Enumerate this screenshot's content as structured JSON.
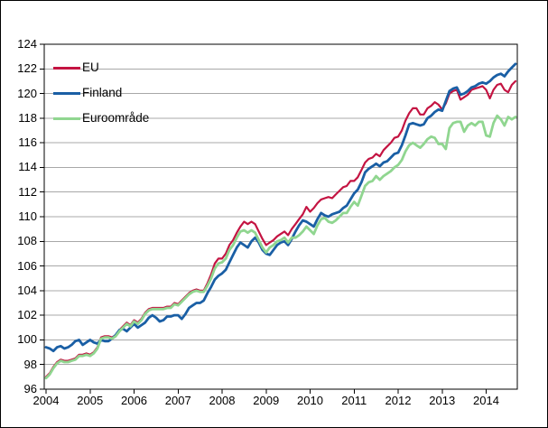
{
  "chart_data": {
    "type": "line",
    "title": "",
    "xlabel": "",
    "ylabel": "",
    "ylim": [
      96,
      124
    ],
    "ytick_step": 2,
    "yticks": [
      96,
      98,
      100,
      102,
      104,
      106,
      108,
      110,
      112,
      114,
      116,
      118,
      120,
      122,
      124
    ],
    "xtick_labels": [
      "2004",
      "2005",
      "2006",
      "2007",
      "2008",
      "2009",
      "2010",
      "2011",
      "2012",
      "2013",
      "2014"
    ],
    "x_start": "2004-01",
    "x_end": "2014-09",
    "x_frequency": "monthly",
    "grid": "horizontal",
    "legend_position": "top-left",
    "plot_border_color": "#000000",
    "gridline_color": "#a8a8a8",
    "series": [
      {
        "name": "EU",
        "color": "#c41442",
        "line_width": 2.2,
        "values": [
          97.0,
          97.3,
          97.8,
          98.2,
          98.4,
          98.3,
          98.3,
          98.4,
          98.5,
          98.8,
          98.8,
          98.9,
          98.8,
          99.0,
          99.4,
          100.2,
          100.3,
          100.3,
          100.2,
          100.4,
          100.8,
          101.1,
          101.4,
          101.2,
          101.6,
          101.4,
          101.7,
          102.2,
          102.5,
          102.6,
          102.6,
          102.6,
          102.6,
          102.7,
          102.7,
          103.0,
          102.9,
          103.2,
          103.5,
          103.8,
          104.0,
          104.1,
          104.0,
          104.0,
          104.6,
          105.3,
          106.2,
          106.6,
          106.6,
          107.0,
          107.7,
          108.1,
          108.7,
          109.2,
          109.6,
          109.4,
          109.6,
          109.4,
          108.8,
          108.2,
          107.7,
          107.9,
          108.1,
          108.4,
          108.6,
          108.8,
          108.5,
          109.0,
          109.4,
          109.8,
          110.2,
          110.8,
          110.4,
          110.7,
          111.1,
          111.4,
          111.5,
          111.6,
          111.5,
          111.8,
          112.1,
          112.4,
          112.5,
          112.9,
          112.9,
          113.2,
          113.8,
          114.4,
          114.7,
          114.8,
          115.1,
          114.9,
          115.4,
          115.7,
          116.0,
          116.4,
          116.5,
          117.0,
          117.8,
          118.4,
          118.8,
          118.8,
          118.3,
          118.3,
          118.8,
          119.0,
          119.3,
          119.1,
          118.7,
          119.2,
          120.0,
          120.2,
          120.3,
          119.5,
          119.7,
          119.9,
          120.3,
          120.4,
          120.5,
          120.6,
          120.3,
          119.6,
          120.3,
          120.7,
          120.8,
          120.3,
          120.1,
          120.7,
          121.0
        ]
      },
      {
        "name": "Finland",
        "color": "#1a5fa5",
        "line_width": 2.8,
        "values": [
          99.4,
          99.3,
          99.1,
          99.4,
          99.5,
          99.3,
          99.4,
          99.6,
          99.9,
          100.0,
          99.6,
          99.8,
          100.0,
          99.8,
          99.7,
          100.0,
          99.9,
          99.9,
          100.1,
          100.4,
          100.8,
          100.9,
          100.7,
          101.0,
          101.3,
          101.0,
          101.2,
          101.4,
          101.8,
          102.0,
          101.8,
          101.5,
          101.6,
          101.9,
          101.9,
          102.0,
          102.0,
          101.7,
          102.1,
          102.6,
          102.8,
          103.0,
          103.0,
          103.2,
          103.8,
          104.3,
          104.9,
          105.2,
          105.4,
          105.7,
          106.3,
          106.9,
          107.5,
          107.9,
          107.7,
          107.5,
          108.0,
          108.3,
          107.9,
          107.3,
          107.0,
          106.9,
          107.3,
          107.7,
          107.9,
          108.0,
          107.7,
          108.2,
          108.8,
          109.3,
          109.7,
          109.6,
          109.4,
          109.2,
          109.8,
          110.3,
          110.1,
          110.0,
          110.2,
          110.3,
          110.4,
          110.7,
          110.9,
          111.4,
          111.9,
          112.2,
          112.8,
          113.6,
          113.9,
          114.1,
          114.3,
          114.1,
          114.4,
          114.5,
          114.8,
          115.1,
          115.2,
          115.8,
          116.6,
          117.5,
          117.6,
          117.5,
          117.4,
          117.5,
          118.0,
          118.2,
          118.5,
          118.7,
          118.6,
          119.4,
          120.2,
          120.4,
          120.5,
          119.9,
          120.0,
          120.2,
          120.5,
          120.6,
          120.8,
          120.9,
          120.8,
          121.0,
          121.3,
          121.5,
          121.6,
          121.4,
          121.8,
          122.1,
          122.4
        ]
      },
      {
        "name": "Euroområde",
        "color": "#90d690",
        "line_width": 2.8,
        "values": [
          96.9,
          97.2,
          97.7,
          98.1,
          98.3,
          98.2,
          98.2,
          98.3,
          98.4,
          98.7,
          98.7,
          98.8,
          98.7,
          98.9,
          99.3,
          100.1,
          100.2,
          100.2,
          100.1,
          100.3,
          100.7,
          101.0,
          101.3,
          101.1,
          101.5,
          101.3,
          101.6,
          102.1,
          102.4,
          102.5,
          102.5,
          102.5,
          102.5,
          102.6,
          102.6,
          102.9,
          102.8,
          103.1,
          103.4,
          103.7,
          103.9,
          104.0,
          103.9,
          103.9,
          104.4,
          105.0,
          105.8,
          106.2,
          106.3,
          106.6,
          107.3,
          107.7,
          108.3,
          108.8,
          108.9,
          108.7,
          108.9,
          108.7,
          108.1,
          107.5,
          107.1,
          107.5,
          107.7,
          108.0,
          108.1,
          108.3,
          107.9,
          108.3,
          108.3,
          108.5,
          108.8,
          109.2,
          108.9,
          108.6,
          109.3,
          109.8,
          109.9,
          109.6,
          109.5,
          109.7,
          110.0,
          110.3,
          110.3,
          110.8,
          111.2,
          110.9,
          111.7,
          112.5,
          112.8,
          112.9,
          113.3,
          113.0,
          113.3,
          113.5,
          113.7,
          114.0,
          114.2,
          114.6,
          115.3,
          115.8,
          116.0,
          115.8,
          115.6,
          115.9,
          116.3,
          116.5,
          116.4,
          115.9,
          115.9,
          115.5,
          117.2,
          117.6,
          117.7,
          117.7,
          116.9,
          117.4,
          117.6,
          117.4,
          117.7,
          117.7,
          116.6,
          116.5,
          117.6,
          118.2,
          117.9,
          117.4,
          118.1,
          117.9,
          118.1
        ]
      }
    ]
  },
  "legend": {
    "items": [
      {
        "label": "EU"
      },
      {
        "label": "Finland"
      },
      {
        "label": "Euroområde"
      }
    ]
  }
}
